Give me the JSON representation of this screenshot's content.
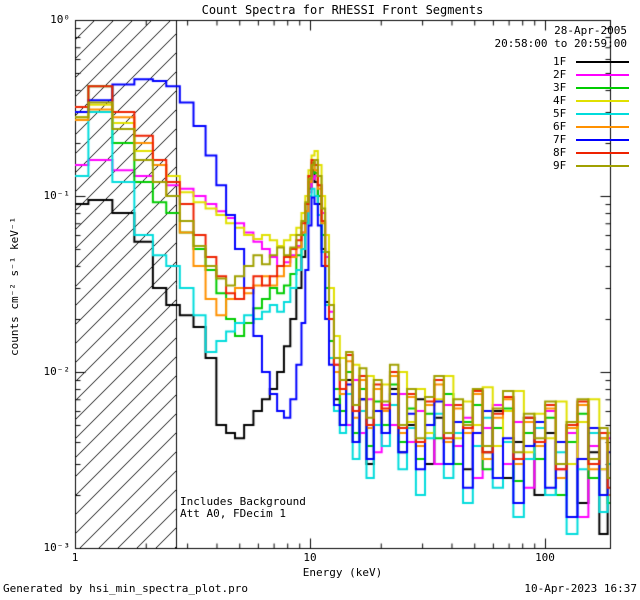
{
  "title": "Count Spectra for RHESSI Front Segments",
  "header": {
    "date": "28-Apr-2005",
    "time_range": "20:58:00 to 20:59:00"
  },
  "axes": {
    "xlabel": "Energy (keV)",
    "ylabel": "counts cm⁻² s⁻¹ keV⁻¹",
    "xticks": [
      {
        "label": "1",
        "value": 1
      },
      {
        "label": "10",
        "value": 10
      },
      {
        "label": "100",
        "value": 100
      }
    ],
    "yticks": [
      {
        "label": "10⁰",
        "value": 1
      },
      {
        "label": "10⁻¹",
        "value": 0.1
      },
      {
        "label": "10⁻²",
        "value": 0.01
      },
      {
        "label": "10⁻³",
        "value": 0.001
      }
    ]
  },
  "annotations": {
    "background": "Includes Background",
    "attenuator": "Att A0, FDecim 1"
  },
  "footer": {
    "left": "Generated by hsi_min_spectra_plot.pro",
    "right": "10-Apr-2023 16:37"
  },
  "chart_data": {
    "type": "line",
    "title": "Count Spectra for RHESSI Front Segments",
    "xlabel": "Energy (keV)",
    "ylabel": "counts cm⁻² s⁻¹ keV⁻¹",
    "xscale": "log",
    "yscale": "log",
    "xlim": [
      1,
      190
    ],
    "ylim": [
      0.001,
      1
    ],
    "grid": false,
    "step": true,
    "legend_position": "top-right",
    "masked_low_energy_region_keV": [
      1,
      2.7
    ],
    "x": [
      1.0,
      1.3,
      1.6,
      2.0,
      2.3,
      2.6,
      3.0,
      3.4,
      3.8,
      4.2,
      4.6,
      5.0,
      5.5,
      6.0,
      6.5,
      7.0,
      7.5,
      8.0,
      8.5,
      9.0,
      9.4,
      9.7,
      10.0,
      10.3,
      10.6,
      11.0,
      11.4,
      11.8,
      12.3,
      13.0,
      13.8,
      14.7,
      15.7,
      16.8,
      18.0,
      19.4,
      21.0,
      22.8,
      24.8,
      27.0,
      29.5,
      32.3,
      35.4,
      38.9,
      42.7,
      47.0,
      51.7,
      57.0,
      63.0,
      69.7,
      77.2,
      85.6,
      95.0,
      105.5,
      117.2,
      130.3,
      145.0,
      161.4,
      179.7,
      190.0
    ],
    "series": [
      {
        "name": "1F",
        "color": "#000000",
        "values": [
          0.09,
          0.095,
          0.08,
          0.055,
          0.03,
          0.024,
          0.021,
          0.018,
          0.012,
          0.005,
          0.0045,
          0.0042,
          0.005,
          0.006,
          0.007,
          0.008,
          0.01,
          0.014,
          0.02,
          0.03,
          0.045,
          0.07,
          0.11,
          0.14,
          0.12,
          0.09,
          0.05,
          0.025,
          0.012,
          0.007,
          0.005,
          0.009,
          0.004,
          0.007,
          0.003,
          0.006,
          0.0045,
          0.008,
          0.0035,
          0.005,
          0.007,
          0.003,
          0.0055,
          0.004,
          0.0065,
          0.0028,
          0.005,
          0.0035,
          0.006,
          0.0025,
          0.004,
          0.0055,
          0.002,
          0.0045,
          0.003,
          0.005,
          0.0018,
          0.0035,
          0.0012,
          0.003
        ]
      },
      {
        "name": "2F",
        "color": "#ff00ff",
        "values": [
          0.15,
          0.16,
          0.14,
          0.13,
          0.12,
          0.115,
          0.11,
          0.1,
          0.09,
          0.082,
          0.075,
          0.07,
          0.062,
          0.055,
          0.05,
          0.045,
          0.04,
          0.042,
          0.046,
          0.052,
          0.062,
          0.082,
          0.105,
          0.125,
          0.13,
          0.115,
          0.08,
          0.045,
          0.022,
          0.011,
          0.008,
          0.005,
          0.009,
          0.0045,
          0.007,
          0.0035,
          0.0065,
          0.005,
          0.0075,
          0.004,
          0.006,
          0.0045,
          0.003,
          0.0065,
          0.0038,
          0.0055,
          0.0025,
          0.0048,
          0.0065,
          0.003,
          0.0052,
          0.0022,
          0.004,
          0.006,
          0.0028,
          0.0045,
          0.0015,
          0.0038,
          0.0028,
          0.0042
        ]
      },
      {
        "name": "3F",
        "color": "#00cc00",
        "values": [
          0.3,
          0.42,
          0.2,
          0.12,
          0.092,
          0.08,
          0.062,
          0.05,
          0.038,
          0.028,
          0.02,
          0.016,
          0.019,
          0.023,
          0.026,
          0.03,
          0.028,
          0.031,
          0.036,
          0.046,
          0.06,
          0.09,
          0.13,
          0.155,
          0.135,
          0.1,
          0.06,
          0.03,
          0.015,
          0.008,
          0.006,
          0.01,
          0.0045,
          0.008,
          0.0038,
          0.0068,
          0.005,
          0.0085,
          0.004,
          0.0062,
          0.0032,
          0.0058,
          0.0042,
          0.0075,
          0.003,
          0.0052,
          0.0065,
          0.0028,
          0.0048,
          0.0062,
          0.0024,
          0.0045,
          0.0032,
          0.0055,
          0.002,
          0.004,
          0.0058,
          0.0025,
          0.0042,
          0.0018
        ]
      },
      {
        "name": "4F",
        "color": "#e0e000",
        "values": [
          0.28,
          0.33,
          0.26,
          0.18,
          0.15,
          0.13,
          0.105,
          0.092,
          0.085,
          0.078,
          0.07,
          0.066,
          0.06,
          0.057,
          0.06,
          0.056,
          0.052,
          0.056,
          0.06,
          0.066,
          0.08,
          0.1,
          0.14,
          0.17,
          0.18,
          0.15,
          0.1,
          0.06,
          0.03,
          0.016,
          0.012,
          0.0075,
          0.011,
          0.006,
          0.0095,
          0.005,
          0.0085,
          0.0065,
          0.01,
          0.0052,
          0.008,
          0.0045,
          0.007,
          0.0095,
          0.0042,
          0.0068,
          0.005,
          0.0082,
          0.0038,
          0.006,
          0.0078,
          0.0035,
          0.0058,
          0.0042,
          0.0068,
          0.003,
          0.0052,
          0.007,
          0.0028,
          0.0045
        ]
      },
      {
        "name": "5F",
        "color": "#00dcdc",
        "values": [
          0.13,
          0.3,
          0.12,
          0.06,
          0.046,
          0.04,
          0.03,
          0.021,
          0.013,
          0.015,
          0.017,
          0.019,
          0.021,
          0.02,
          0.022,
          0.024,
          0.022,
          0.025,
          0.03,
          0.038,
          0.05,
          0.07,
          0.1,
          0.11,
          0.1,
          0.078,
          0.048,
          0.024,
          0.012,
          0.006,
          0.0045,
          0.0075,
          0.0032,
          0.006,
          0.0025,
          0.005,
          0.0038,
          0.0065,
          0.0028,
          0.0048,
          0.002,
          0.0042,
          0.0058,
          0.0025,
          0.0045,
          0.0018,
          0.0038,
          0.0055,
          0.0022,
          0.004,
          0.0015,
          0.0032,
          0.0048,
          0.002,
          0.0035,
          0.0012,
          0.0028,
          0.0045,
          0.0016,
          0.003
        ]
      },
      {
        "name": "6F",
        "color": "#ff9100",
        "values": [
          0.27,
          0.31,
          0.28,
          0.2,
          0.15,
          0.1,
          0.062,
          0.04,
          0.026,
          0.021,
          0.026,
          0.03,
          0.028,
          0.031,
          0.035,
          0.031,
          0.035,
          0.04,
          0.045,
          0.051,
          0.062,
          0.082,
          0.12,
          0.15,
          0.14,
          0.11,
          0.07,
          0.04,
          0.02,
          0.01,
          0.0075,
          0.0115,
          0.0055,
          0.009,
          0.0048,
          0.008,
          0.006,
          0.0095,
          0.0045,
          0.0072,
          0.0038,
          0.0065,
          0.0085,
          0.004,
          0.0062,
          0.0045,
          0.0075,
          0.0032,
          0.0055,
          0.007,
          0.003,
          0.0052,
          0.0038,
          0.0062,
          0.0025,
          0.0048,
          0.0065,
          0.0028,
          0.0042,
          0.002
        ]
      },
      {
        "name": "7F",
        "color": "#0000ff",
        "values": [
          0.3,
          0.35,
          0.43,
          0.46,
          0.45,
          0.42,
          0.34,
          0.25,
          0.17,
          0.115,
          0.078,
          0.05,
          0.03,
          0.016,
          0.01,
          0.0075,
          0.006,
          0.0055,
          0.007,
          0.011,
          0.019,
          0.038,
          0.068,
          0.098,
          0.09,
          0.068,
          0.04,
          0.02,
          0.011,
          0.0065,
          0.005,
          0.0085,
          0.004,
          0.007,
          0.0032,
          0.006,
          0.0045,
          0.0075,
          0.0035,
          0.0058,
          0.0028,
          0.005,
          0.0068,
          0.003,
          0.0052,
          0.0022,
          0.0045,
          0.006,
          0.0025,
          0.0042,
          0.0018,
          0.0038,
          0.0052,
          0.0022,
          0.004,
          0.0015,
          0.0032,
          0.0048,
          0.002,
          0.0035
        ]
      },
      {
        "name": "8F",
        "color": "#ee2200",
        "values": [
          0.32,
          0.42,
          0.3,
          0.22,
          0.16,
          0.12,
          0.09,
          0.06,
          0.045,
          0.035,
          0.028,
          0.026,
          0.03,
          0.035,
          0.031,
          0.035,
          0.04,
          0.045,
          0.05,
          0.056,
          0.07,
          0.09,
          0.13,
          0.16,
          0.15,
          0.115,
          0.072,
          0.04,
          0.02,
          0.011,
          0.008,
          0.0125,
          0.006,
          0.0095,
          0.005,
          0.0085,
          0.0062,
          0.01,
          0.0048,
          0.0075,
          0.004,
          0.0068,
          0.009,
          0.0042,
          0.0065,
          0.0048,
          0.0078,
          0.0035,
          0.0058,
          0.0072,
          0.0032,
          0.0055,
          0.004,
          0.0065,
          0.0028,
          0.005,
          0.0068,
          0.003,
          0.0045,
          0.0022
        ]
      },
      {
        "name": "9F",
        "color": "#a0a000",
        "values": [
          0.28,
          0.34,
          0.24,
          0.16,
          0.12,
          0.1,
          0.072,
          0.052,
          0.04,
          0.034,
          0.031,
          0.035,
          0.04,
          0.046,
          0.041,
          0.046,
          0.051,
          0.046,
          0.051,
          0.06,
          0.072,
          0.092,
          0.125,
          0.15,
          0.16,
          0.13,
          0.085,
          0.048,
          0.024,
          0.012,
          0.009,
          0.013,
          0.0065,
          0.0105,
          0.0055,
          0.009,
          0.0068,
          0.011,
          0.005,
          0.008,
          0.0042,
          0.0072,
          0.0095,
          0.0045,
          0.007,
          0.005,
          0.008,
          0.0038,
          0.0062,
          0.0078,
          0.0035,
          0.0058,
          0.0042,
          0.0068,
          0.003,
          0.0052,
          0.007,
          0.0032,
          0.0048,
          0.0025
        ]
      }
    ]
  }
}
